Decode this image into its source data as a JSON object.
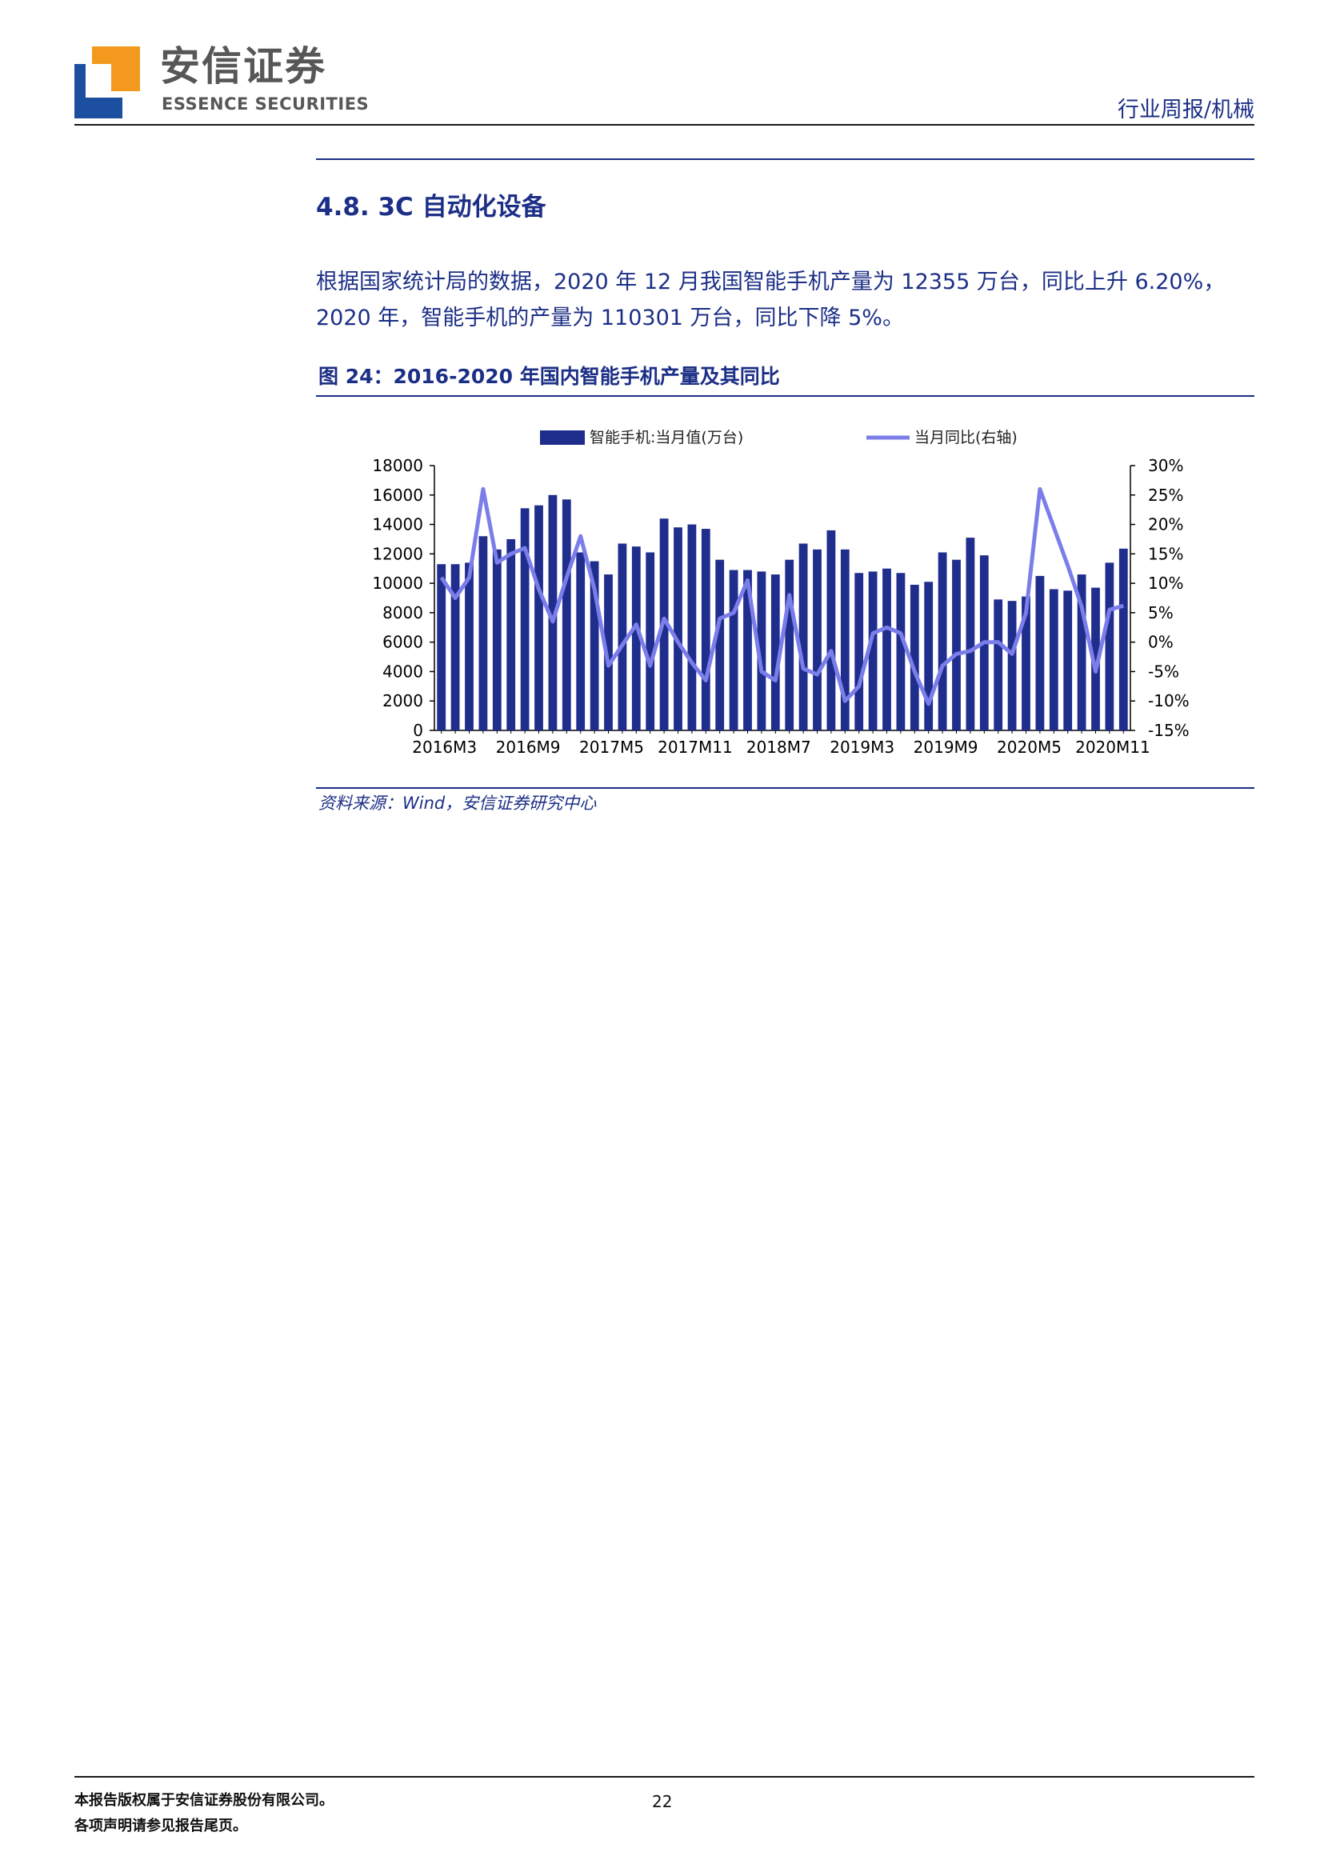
{
  "header": {
    "brand_cn": "安信证券",
    "brand_en": "ESSENCE SECURITIES",
    "doc_type": "行业周报/机械",
    "logo_colors": {
      "orange": "#f39a1e",
      "blue": "#1d4fa0"
    }
  },
  "section": {
    "title": "4.8. 3C 自动化设备",
    "paragraph": "根据国家统计局的数据，2020 年 12 月我国智能手机产量为 12355 万台，同比上升 6.20%，2020 年，智能手机的产量为 110301 万台，同比下降 5%。"
  },
  "figure": {
    "title": "图 24：2016-2020 年国内智能手机产量及其同比",
    "source": "资料来源：Wind，安信证券研究中心"
  },
  "chart_data": {
    "type": "bar",
    "legend": [
      "智能手机:当月值(万台)",
      "当月同比(右轴)"
    ],
    "legend_position": "top",
    "colors": {
      "bar": "#1f2d8c",
      "line": "#7b7eea"
    },
    "x_tick_labels": [
      "2016M3",
      "2016M9",
      "2017M5",
      "2017M11",
      "2018M7",
      "2019M3",
      "2019M9",
      "2020M5",
      "2020M11"
    ],
    "y_left": {
      "min": 0,
      "max": 18000,
      "step": 2000,
      "ticks": [
        "0",
        "2000",
        "4000",
        "6000",
        "8000",
        "10000",
        "12000",
        "14000",
        "16000",
        "18000"
      ]
    },
    "y_right": {
      "min": -15,
      "max": 30,
      "step": 5,
      "ticks": [
        "-15%",
        "-10%",
        "-5%",
        "0%",
        "5%",
        "10%",
        "15%",
        "20%",
        "25%",
        "30%"
      ]
    },
    "series": [
      {
        "name": "智能手机:当月值(万台)",
        "kind": "bar",
        "axis": "left",
        "values": [
          11300,
          11300,
          11400,
          13200,
          12300,
          13000,
          15100,
          15300,
          16000,
          15700,
          12100,
          11500,
          10600,
          12700,
          12500,
          12100,
          14400,
          13800,
          14000,
          13700,
          11600,
          10900,
          10900,
          10800,
          10600,
          11600,
          12700,
          12300,
          13600,
          12300,
          10700,
          10800,
          11000,
          10700,
          9900,
          10100,
          12100,
          11600,
          13100,
          11900,
          8900,
          8800,
          9100,
          10500,
          9600,
          9500,
          10600,
          9700,
          11400,
          12355
        ]
      },
      {
        "name": "当月同比(右轴)",
        "kind": "line",
        "axis": "right",
        "values": [
          11,
          7.5,
          11,
          26,
          13.5,
          15,
          16,
          9,
          3.5,
          11,
          18,
          9,
          -4,
          -0.5,
          3,
          -4,
          4,
          0,
          -3.5,
          -6.5,
          4,
          5,
          10.5,
          -5,
          -6.5,
          8,
          -4.5,
          -5.5,
          -1.5,
          -10,
          -7.5,
          1.5,
          2.5,
          1.5,
          -5,
          -10.5,
          -4,
          -2,
          -1.5,
          0,
          0,
          -2,
          5,
          26,
          19.5,
          13,
          6,
          -5,
          5.5,
          6.2
        ]
      }
    ]
  },
  "footer": {
    "line1": "本报告版权属于安信证券股份有限公司。",
    "line2": "各项声明请参见报告尾页。",
    "page_number": "22"
  }
}
